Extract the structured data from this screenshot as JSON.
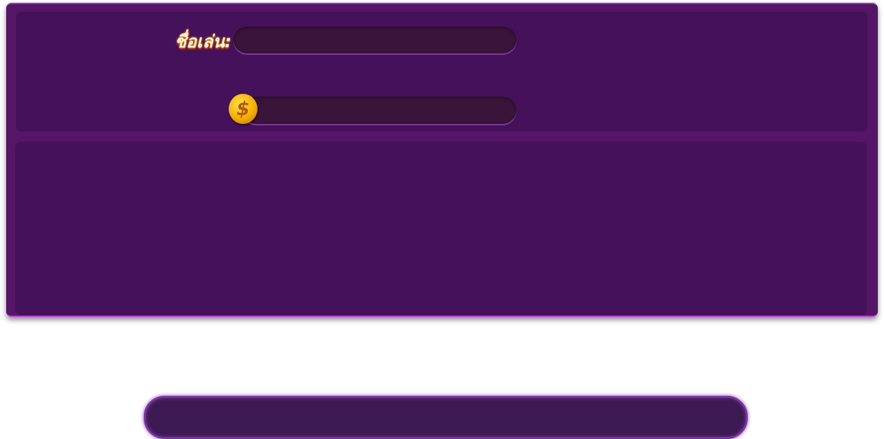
{
  "player": {
    "name_label": "ชื่อเล่น:",
    "name_value": "",
    "coin_icon": "gold-dollar-coin",
    "coin_symbol": "$",
    "coin_value": ""
  },
  "bottom": {
    "field_value": ""
  },
  "colors": {
    "panel": "#561668",
    "inner": "#45115a",
    "field": "#3a1439",
    "accent": "#c04ad8"
  }
}
